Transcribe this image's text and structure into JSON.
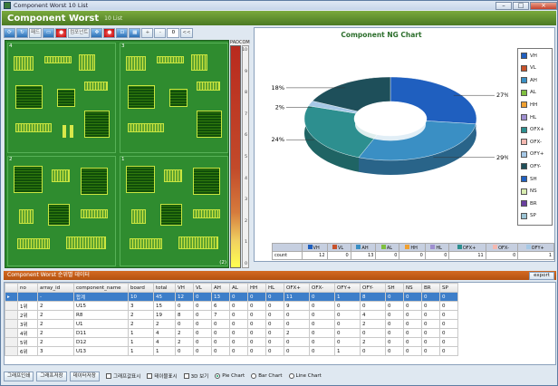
{
  "window": {
    "title": "Component Worst 10 List"
  },
  "header": {
    "title": "Component Worst",
    "subtitle": "10 List"
  },
  "toolbar": {
    "buttons": [
      "",
      "",
      "",
      "패드",
      "",
      "",
      "컴포넌트",
      "",
      "",
      "",
      "",
      "+",
      "-",
      "",
      "<<"
    ],
    "zoom_value": "0"
  },
  "board": {
    "quadrants": [
      "4",
      "3",
      "2",
      "1"
    ],
    "footer": "(2)"
  },
  "scale": {
    "header": "PADCOM",
    "ticks": [
      "10",
      "9",
      "8",
      "7",
      "6",
      "5",
      "4",
      "3",
      "2",
      "1",
      "0"
    ]
  },
  "chart": {
    "title": "Component NG Chart",
    "pct_labels": [
      "27%",
      "29%",
      "24%",
      "2%",
      "18%"
    ],
    "legend": [
      {
        "name": "VH",
        "color": "#1f5fbf"
      },
      {
        "name": "VL",
        "color": "#c8522a"
      },
      {
        "name": "AH",
        "color": "#3a8fc4"
      },
      {
        "name": "AL",
        "color": "#7fbf3f"
      },
      {
        "name": "HH",
        "color": "#f0a030"
      },
      {
        "name": "HL",
        "color": "#9f8fd0"
      },
      {
        "name": "OFX+",
        "color": "#2d8f8f"
      },
      {
        "name": "OFX-",
        "color": "#f4b8b0"
      },
      {
        "name": "OFY+",
        "color": "#a6c8e6"
      },
      {
        "name": "OFY-",
        "color": "#1e4f5a"
      },
      {
        "name": "SH",
        "color": "#2060c0"
      },
      {
        "name": "NS",
        "color": "#d8ecb0"
      },
      {
        "name": "BR",
        "color": "#6a3fa0"
      },
      {
        "name": "SP",
        "color": "#9cc4d4"
      }
    ],
    "table_row_label": "count",
    "table_headers": [
      "VH",
      "VL",
      "AH",
      "AL",
      "HH",
      "HL",
      "OFX+",
      "OFX-",
      "OFY+"
    ],
    "table_values": [
      "12",
      "0",
      "13",
      "0",
      "0",
      "0",
      "11",
      "0",
      "1"
    ]
  },
  "chart_data": {
    "type": "pie",
    "title": "Component NG Chart",
    "slices": [
      {
        "label": "VH",
        "value": 27
      },
      {
        "label": "AH",
        "value": 29
      },
      {
        "label": "OFX+",
        "value": 24
      },
      {
        "label": "OFY+",
        "value": 2
      },
      {
        "label": "OFY-",
        "value": 18
      }
    ],
    "style": "3D doughnut",
    "legend": "right"
  },
  "grid": {
    "header_title": "Component Worst 순위별 데이터",
    "export_label": "export",
    "columns": [
      "no",
      "array_id",
      "component_name",
      "board",
      "total",
      "VH",
      "VL",
      "AH",
      "AL",
      "HH",
      "HL",
      "OFX+",
      "OFX-",
      "OFY+",
      "OFY-",
      "SH",
      "NS",
      "BR",
      "SP"
    ],
    "rows": [
      [
        "",
        "-",
        "합계",
        "10",
        "45",
        "12",
        "0",
        "13",
        "0",
        "0",
        "0",
        "11",
        "0",
        "1",
        "8",
        "0",
        "0",
        "0",
        "0"
      ],
      [
        "1위",
        "2",
        "U15",
        "3",
        "15",
        "0",
        "0",
        "6",
        "0",
        "0",
        "0",
        "9",
        "0",
        "0",
        "0",
        "0",
        "0",
        "0",
        "0"
      ],
      [
        "2위",
        "2",
        "R8",
        "2",
        "19",
        "8",
        "0",
        "7",
        "0",
        "0",
        "0",
        "0",
        "0",
        "0",
        "4",
        "0",
        "0",
        "0",
        "0"
      ],
      [
        "3위",
        "2",
        "U1",
        "2",
        "2",
        "0",
        "0",
        "0",
        "0",
        "0",
        "0",
        "0",
        "0",
        "0",
        "2",
        "0",
        "0",
        "0",
        "0"
      ],
      [
        "4위",
        "2",
        "D11",
        "1",
        "4",
        "2",
        "0",
        "0",
        "0",
        "0",
        "0",
        "2",
        "0",
        "0",
        "0",
        "0",
        "0",
        "0",
        "0"
      ],
      [
        "5위",
        "2",
        "D12",
        "1",
        "4",
        "2",
        "0",
        "0",
        "0",
        "0",
        "0",
        "0",
        "0",
        "0",
        "2",
        "0",
        "0",
        "0",
        "0"
      ],
      [
        "6위",
        "3",
        "U13",
        "1",
        "1",
        "0",
        "0",
        "0",
        "0",
        "0",
        "0",
        "0",
        "0",
        "1",
        "0",
        "0",
        "0",
        "0",
        "0"
      ]
    ]
  },
  "bottom": {
    "btn_print": "그래프인쇄",
    "btn_save": "그래프저장",
    "btn_data_save": "데이터저장",
    "chk_graph_value": "그래프값표시",
    "chk_table": "테이블표시",
    "chk_3d": "3D 보기",
    "radio_pie": "Pie Chart",
    "radio_bar": "Bar Chart",
    "radio_line": "Line Chart"
  }
}
